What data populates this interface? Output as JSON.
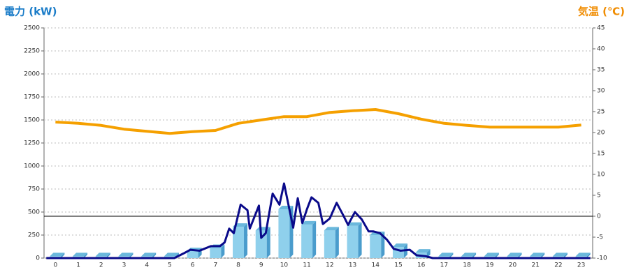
{
  "chart_data": {
    "type": "bar",
    "title": "電力 (kW)",
    "y2_title": "気温 (℃)",
    "title_color": "#1a7cc8",
    "y2_title_color": "#f08c00",
    "categories": [
      "0",
      "1",
      "2",
      "3",
      "4",
      "5",
      "6",
      "7",
      "8",
      "9",
      "10",
      "11",
      "12",
      "13",
      "14",
      "15",
      "16",
      "17",
      "18",
      "19",
      "20",
      "21",
      "22",
      "23"
    ],
    "xlim": [
      -0.5,
      23.5
    ],
    "ylim": [
      0,
      2500
    ],
    "yticks": [
      0,
      250,
      500,
      750,
      1000,
      1250,
      1500,
      1750,
      2000,
      2250,
      2500
    ],
    "y2lim": [
      -10,
      45
    ],
    "y2ticks": [
      -10,
      -5,
      0,
      5,
      10,
      15,
      20,
      25,
      30,
      35,
      40,
      45
    ],
    "grid": true,
    "series": [
      {
        "type": "bar",
        "color": "#8fd0ec",
        "values": [
          20,
          20,
          20,
          20,
          20,
          20,
          75,
          110,
          340,
          300,
          530,
          365,
          300,
          350,
          250,
          120,
          60,
          20,
          20,
          20,
          20,
          20,
          20,
          20
        ]
      },
      {
        "type": "line",
        "color": "#0a0a8a",
        "x": [
          -0.4,
          5.2,
          5.6,
          5.9,
          6.3,
          6.5,
          6.8,
          7.2,
          7.4,
          7.6,
          7.8,
          8.1,
          8.4,
          8.5,
          8.9,
          9.0,
          9.2,
          9.5,
          9.8,
          10.0,
          10.4,
          10.6,
          10.8,
          11.0,
          11.2,
          11.5,
          11.7,
          12.0,
          12.3,
          12.6,
          12.8,
          13.1,
          13.4,
          13.7,
          13.9,
          14.2,
          14.5,
          14.8,
          15.1,
          15.5,
          15.8,
          16.2,
          16.5,
          23.4
        ],
        "values": [
          0,
          0,
          50,
          90,
          80,
          100,
          130,
          130,
          170,
          320,
          270,
          580,
          520,
          320,
          570,
          220,
          270,
          700,
          580,
          810,
          330,
          650,
          380,
          530,
          660,
          600,
          370,
          430,
          600,
          460,
          360,
          500,
          420,
          290,
          290,
          270,
          200,
          100,
          80,
          90,
          30,
          20,
          0,
          0
        ]
      },
      {
        "type": "line",
        "axis": "y2",
        "color": "#f5a000",
        "values": [
          22.5,
          22.2,
          21.7,
          20.8,
          20.3,
          19.8,
          20.2,
          20.5,
          22.2,
          23,
          23.8,
          23.8,
          24.8,
          25.2,
          25.5,
          24.5,
          23.2,
          22.2,
          21.7,
          21.3,
          21.3,
          21.3,
          21.3,
          21.8
        ]
      }
    ]
  }
}
